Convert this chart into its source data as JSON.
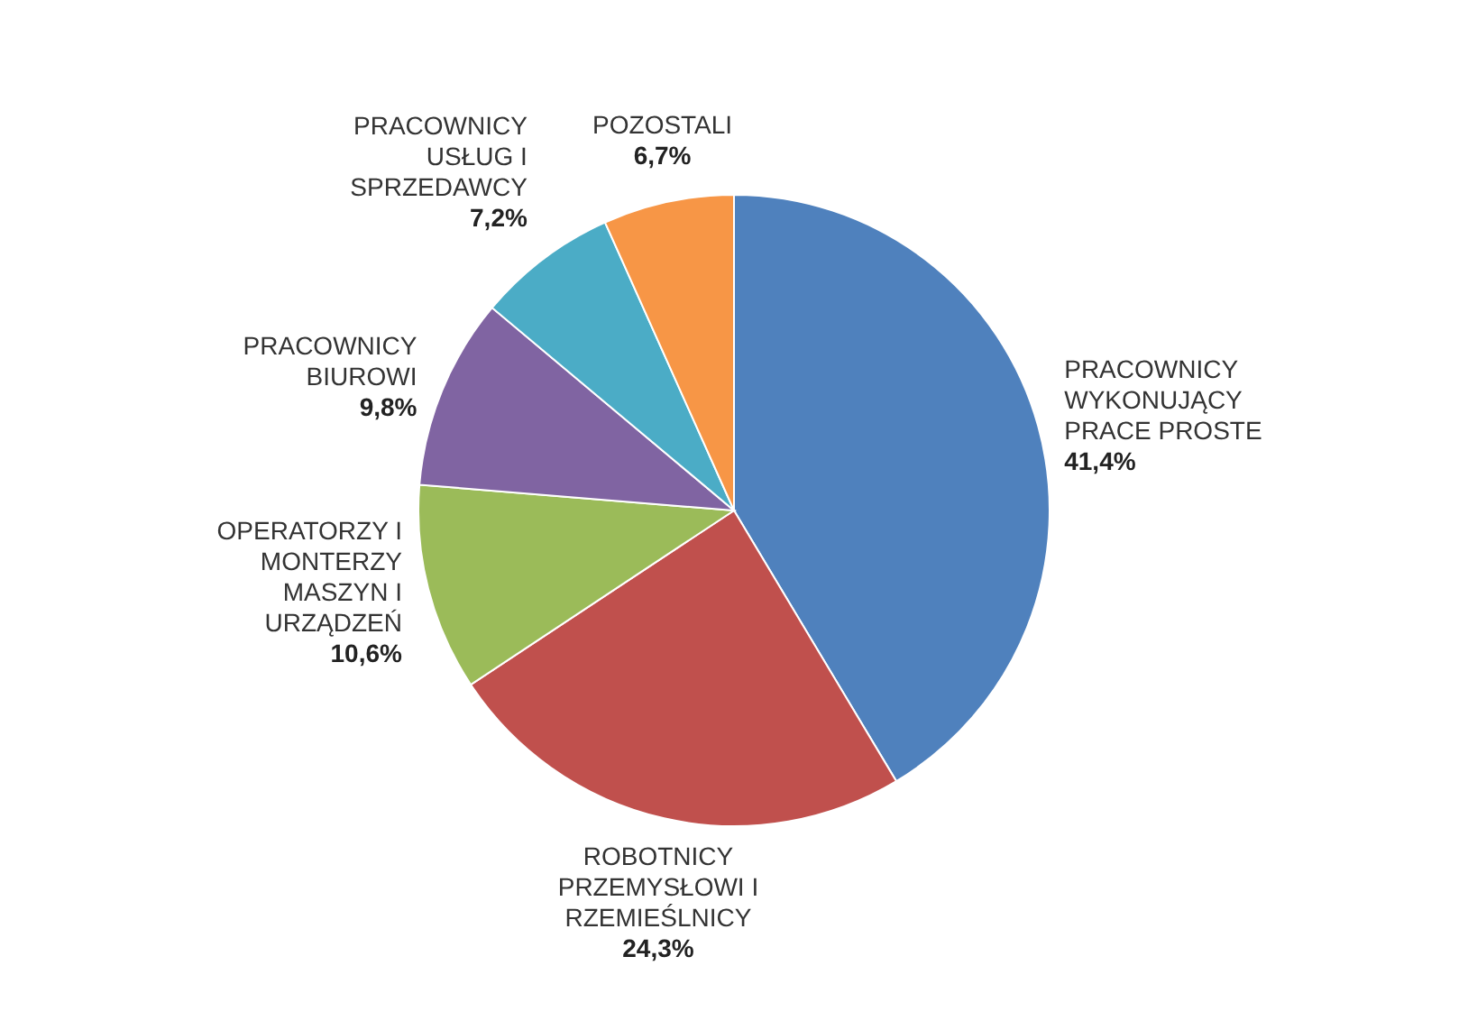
{
  "chart_data": {
    "type": "pie",
    "categories": [
      "PRACOWNICY WYKONUJĄCY PRACE PROSTE",
      "ROBOTNICY PRZEMYSŁOWI I RZEMIEŚLNICY",
      "OPERATORZY I MONTERZY MASZYN I URZĄDZEŃ",
      "PRACOWNICY BIUROWI",
      "PRACOWNICY USŁUG I SPRZEDAWCY",
      "POZOSTALI"
    ],
    "values": [
      41.4,
      24.3,
      10.6,
      9.8,
      7.2,
      6.7
    ],
    "value_labels": [
      "41,4%",
      "24,3%",
      "10,6%",
      "9,8%",
      "7,2%",
      "6,7%"
    ],
    "colors": [
      "#4f81bd",
      "#c0504d",
      "#9bbb59",
      "#8064a2",
      "#4bacc6",
      "#f79646"
    ]
  }
}
